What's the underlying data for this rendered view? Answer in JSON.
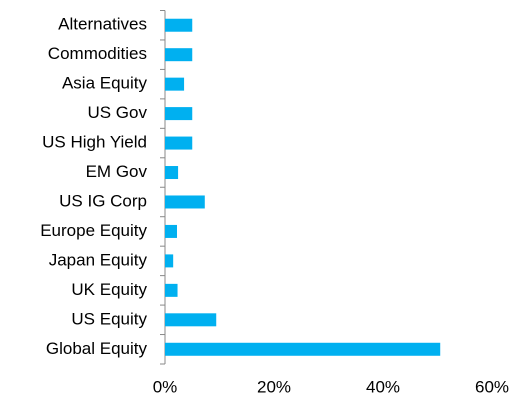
{
  "chart_data": {
    "type": "barh",
    "categories": [
      "Alternatives",
      "Commodities",
      "Asia Equity",
      "US Gov",
      "US High Yield",
      "EM Gov",
      "US IG Corp",
      "Europe Equity",
      "Japan Equity",
      "UK Equity",
      "US Equity",
      "Global Equity"
    ],
    "values": [
      5.0,
      5.0,
      3.5,
      5.0,
      5.0,
      2.4,
      7.3,
      2.2,
      1.5,
      2.3,
      9.4,
      50.5
    ],
    "color": "#00b0f0",
    "xlim": [
      0,
      60
    ],
    "xticks": [
      {
        "value": 0,
        "label": "0%"
      },
      {
        "value": 20,
        "label": "20%"
      },
      {
        "value": 40,
        "label": "40%"
      },
      {
        "value": 60,
        "label": "60%"
      }
    ],
    "grid": false
  }
}
